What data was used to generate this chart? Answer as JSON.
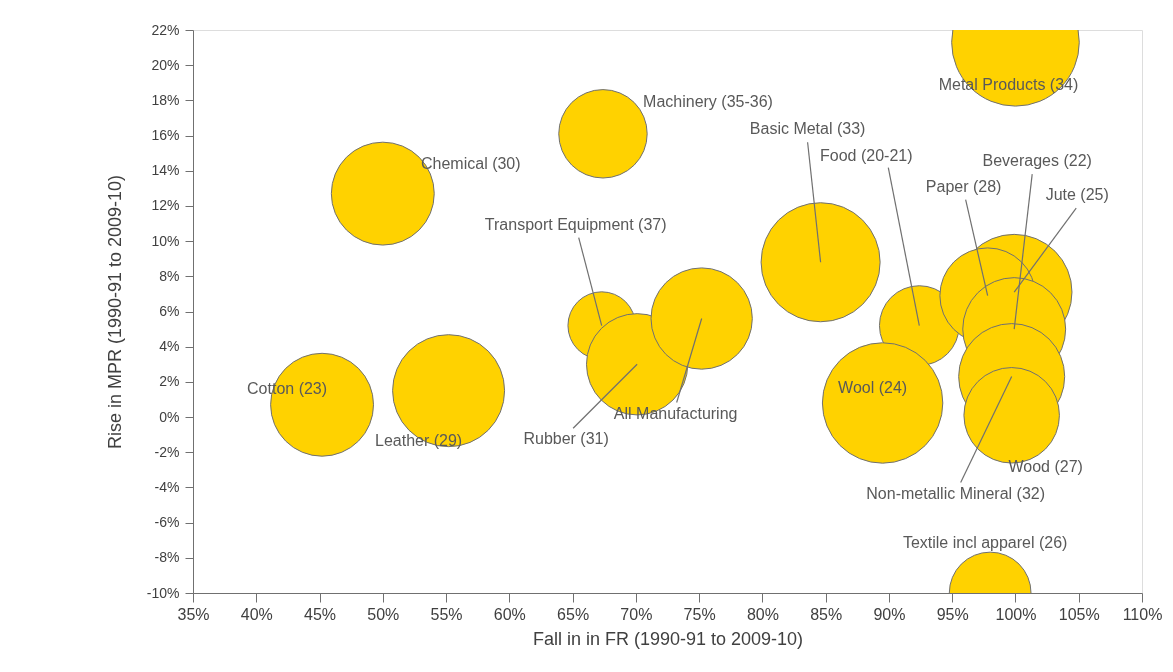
{
  "chart_data": {
    "type": "bubble",
    "xlabel": "Fall in in FR (1990-91 to 2009-10)",
    "ylabel": "Rise in MPR (1990-91 to 2009-10)",
    "x": [
      45.2,
      55.2,
      50.0,
      67.4,
      67.3,
      70.1,
      75.2,
      84.6,
      92.4,
      89.5,
      99.9,
      97.8,
      99.9,
      99.7,
      99.7,
      100.0,
      98.0
    ],
    "series": [
      {
        "color": "#ffd200",
        "values": [
          0.7,
          1.5,
          12.7,
          16.1,
          5.2,
          3.0,
          5.6,
          8.8,
          5.2,
          0.8,
          7.1,
          6.9,
          5.0,
          2.3,
          0.1,
          21.3,
          -10.0
        ],
        "sizes": [
          0.65,
          0.77,
          0.65,
          0.48,
          0.28,
          0.63,
          0.63,
          0.87,
          0.39,
          0.89,
          0.82,
          0.56,
          0.65,
          0.69,
          0.56,
          1.0,
          0.41
        ]
      }
    ],
    "annotations": [
      {
        "text": "Cotton (23)",
        "x": 45.2,
        "y": 0.7
      },
      {
        "text": "Leather (29)",
        "x": 55.2,
        "y": 1.5
      },
      {
        "text": "Chemical (30)",
        "x": 50.0,
        "y": 12.7
      },
      {
        "text": "Machinery (35-36)",
        "x": 67.4,
        "y": 16.1
      },
      {
        "text": "Transport Equipment (37)",
        "x": 67.3,
        "y": 5.2
      },
      {
        "text": "Rubber (31)",
        "x": 70.1,
        "y": 3.0
      },
      {
        "text": "All Manufacturing",
        "x": 75.2,
        "y": 5.6
      },
      {
        "text": "Basic Metal (33)",
        "x": 84.6,
        "y": 8.8
      },
      {
        "text": "Food (20-21)",
        "x": 92.4,
        "y": 5.2
      },
      {
        "text": "Wool (24)",
        "x": 89.5,
        "y": 0.8
      },
      {
        "text": "Jute (25)",
        "x": 99.9,
        "y": 7.1
      },
      {
        "text": "Paper (28)",
        "x": 97.8,
        "y": 6.9
      },
      {
        "text": "Beverages (22)",
        "x": 99.9,
        "y": 5.0
      },
      {
        "text": "Wood (27)",
        "x": 99.7,
        "y": 0.1
      },
      {
        "text": "Non-metallic Mineral (32)",
        "x": 99.7,
        "y": 2.3
      },
      {
        "text": "Metal Products (34)",
        "x": 100.0,
        "y": 21.3
      },
      {
        "text": "Textile incl apparel (26)",
        "x": 98.0,
        "y": -10.0
      }
    ],
    "xlim": [
      35,
      110
    ],
    "xticks": [
      {
        "value": 35,
        "label": "35%"
      },
      {
        "value": 40,
        "label": "40%"
      },
      {
        "value": 45,
        "label": "45%"
      },
      {
        "value": 50,
        "label": "50%"
      },
      {
        "value": 55,
        "label": "55%"
      },
      {
        "value": 60,
        "label": "60%"
      },
      {
        "value": 65,
        "label": "65%"
      },
      {
        "value": 70,
        "label": "70%"
      },
      {
        "value": 75,
        "label": "75%"
      },
      {
        "value": 80,
        "label": "80%"
      },
      {
        "value": 85,
        "label": "85%"
      },
      {
        "value": 90,
        "label": "90%"
      },
      {
        "value": 95,
        "label": "95%"
      },
      {
        "value": 100,
        "label": "100%"
      },
      {
        "value": 105,
        "label": "105%"
      },
      {
        "value": 110,
        "label": "110%"
      }
    ],
    "ylim": [
      -10,
      22
    ],
    "yticks": [
      {
        "value": -10,
        "label": "-10%"
      },
      {
        "value": -8,
        "label": "-8%"
      },
      {
        "value": -6,
        "label": "-6%"
      },
      {
        "value": -4,
        "label": "-4%"
      },
      {
        "value": -2,
        "label": "-2%"
      },
      {
        "value": 0,
        "label": "0%"
      },
      {
        "value": 2,
        "label": "2%"
      },
      {
        "value": 4,
        "label": "4%"
      },
      {
        "value": 6,
        "label": "6%"
      },
      {
        "value": 8,
        "label": "8%"
      },
      {
        "value": 10,
        "label": "10%"
      },
      {
        "value": 12,
        "label": "12%"
      },
      {
        "value": 14,
        "label": "14%"
      },
      {
        "value": 16,
        "label": "16%"
      },
      {
        "value": 18,
        "label": "18%"
      },
      {
        "value": 20,
        "label": "20%"
      },
      {
        "value": 22,
        "label": "22%"
      }
    ],
    "grid": false
  }
}
